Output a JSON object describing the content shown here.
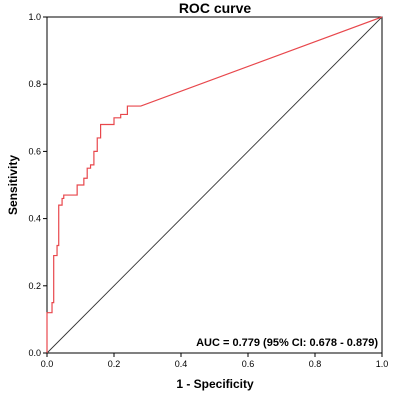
{
  "chart_data": {
    "type": "line",
    "title": "ROC curve",
    "xlabel": "1 - Specificity",
    "ylabel": "Sensitivity",
    "xlim": [
      0.0,
      1.0
    ],
    "ylim": [
      0.0,
      1.0
    ],
    "x_ticks": [
      "0.0",
      "0.2",
      "0.4",
      "0.6",
      "0.8",
      "1.0"
    ],
    "y_ticks": [
      "0.0",
      "0.2",
      "0.4",
      "0.6",
      "0.8",
      "1.0"
    ],
    "grid": false,
    "annotation": "AUC = 0.779 (95% CI: 0.678 - 0.879)",
    "series": [
      {
        "role": "roc",
        "color": "#e8474c",
        "x": [
          0.0,
          0.0,
          0.015,
          0.015,
          0.02,
          0.02,
          0.03,
          0.03,
          0.035,
          0.035,
          0.045,
          0.045,
          0.05,
          0.05,
          0.06,
          0.06,
          0.09,
          0.09,
          0.11,
          0.11,
          0.12,
          0.12,
          0.13,
          0.13,
          0.14,
          0.14,
          0.15,
          0.15,
          0.16,
          0.16,
          0.18,
          0.18,
          0.2,
          0.2,
          0.22,
          0.22,
          0.24,
          0.24,
          0.28,
          1.0
        ],
        "y": [
          0.0,
          0.12,
          0.12,
          0.15,
          0.15,
          0.29,
          0.29,
          0.32,
          0.32,
          0.44,
          0.44,
          0.46,
          0.46,
          0.47,
          0.47,
          0.47,
          0.47,
          0.5,
          0.5,
          0.52,
          0.52,
          0.55,
          0.55,
          0.56,
          0.56,
          0.6,
          0.6,
          0.64,
          0.64,
          0.68,
          0.68,
          0.68,
          0.68,
          0.7,
          0.7,
          0.71,
          0.71,
          0.735,
          0.735,
          1.0
        ]
      },
      {
        "role": "reference",
        "color": "#333333",
        "x": [
          0.0,
          1.0
        ],
        "y": [
          0.0,
          1.0
        ]
      }
    ]
  }
}
